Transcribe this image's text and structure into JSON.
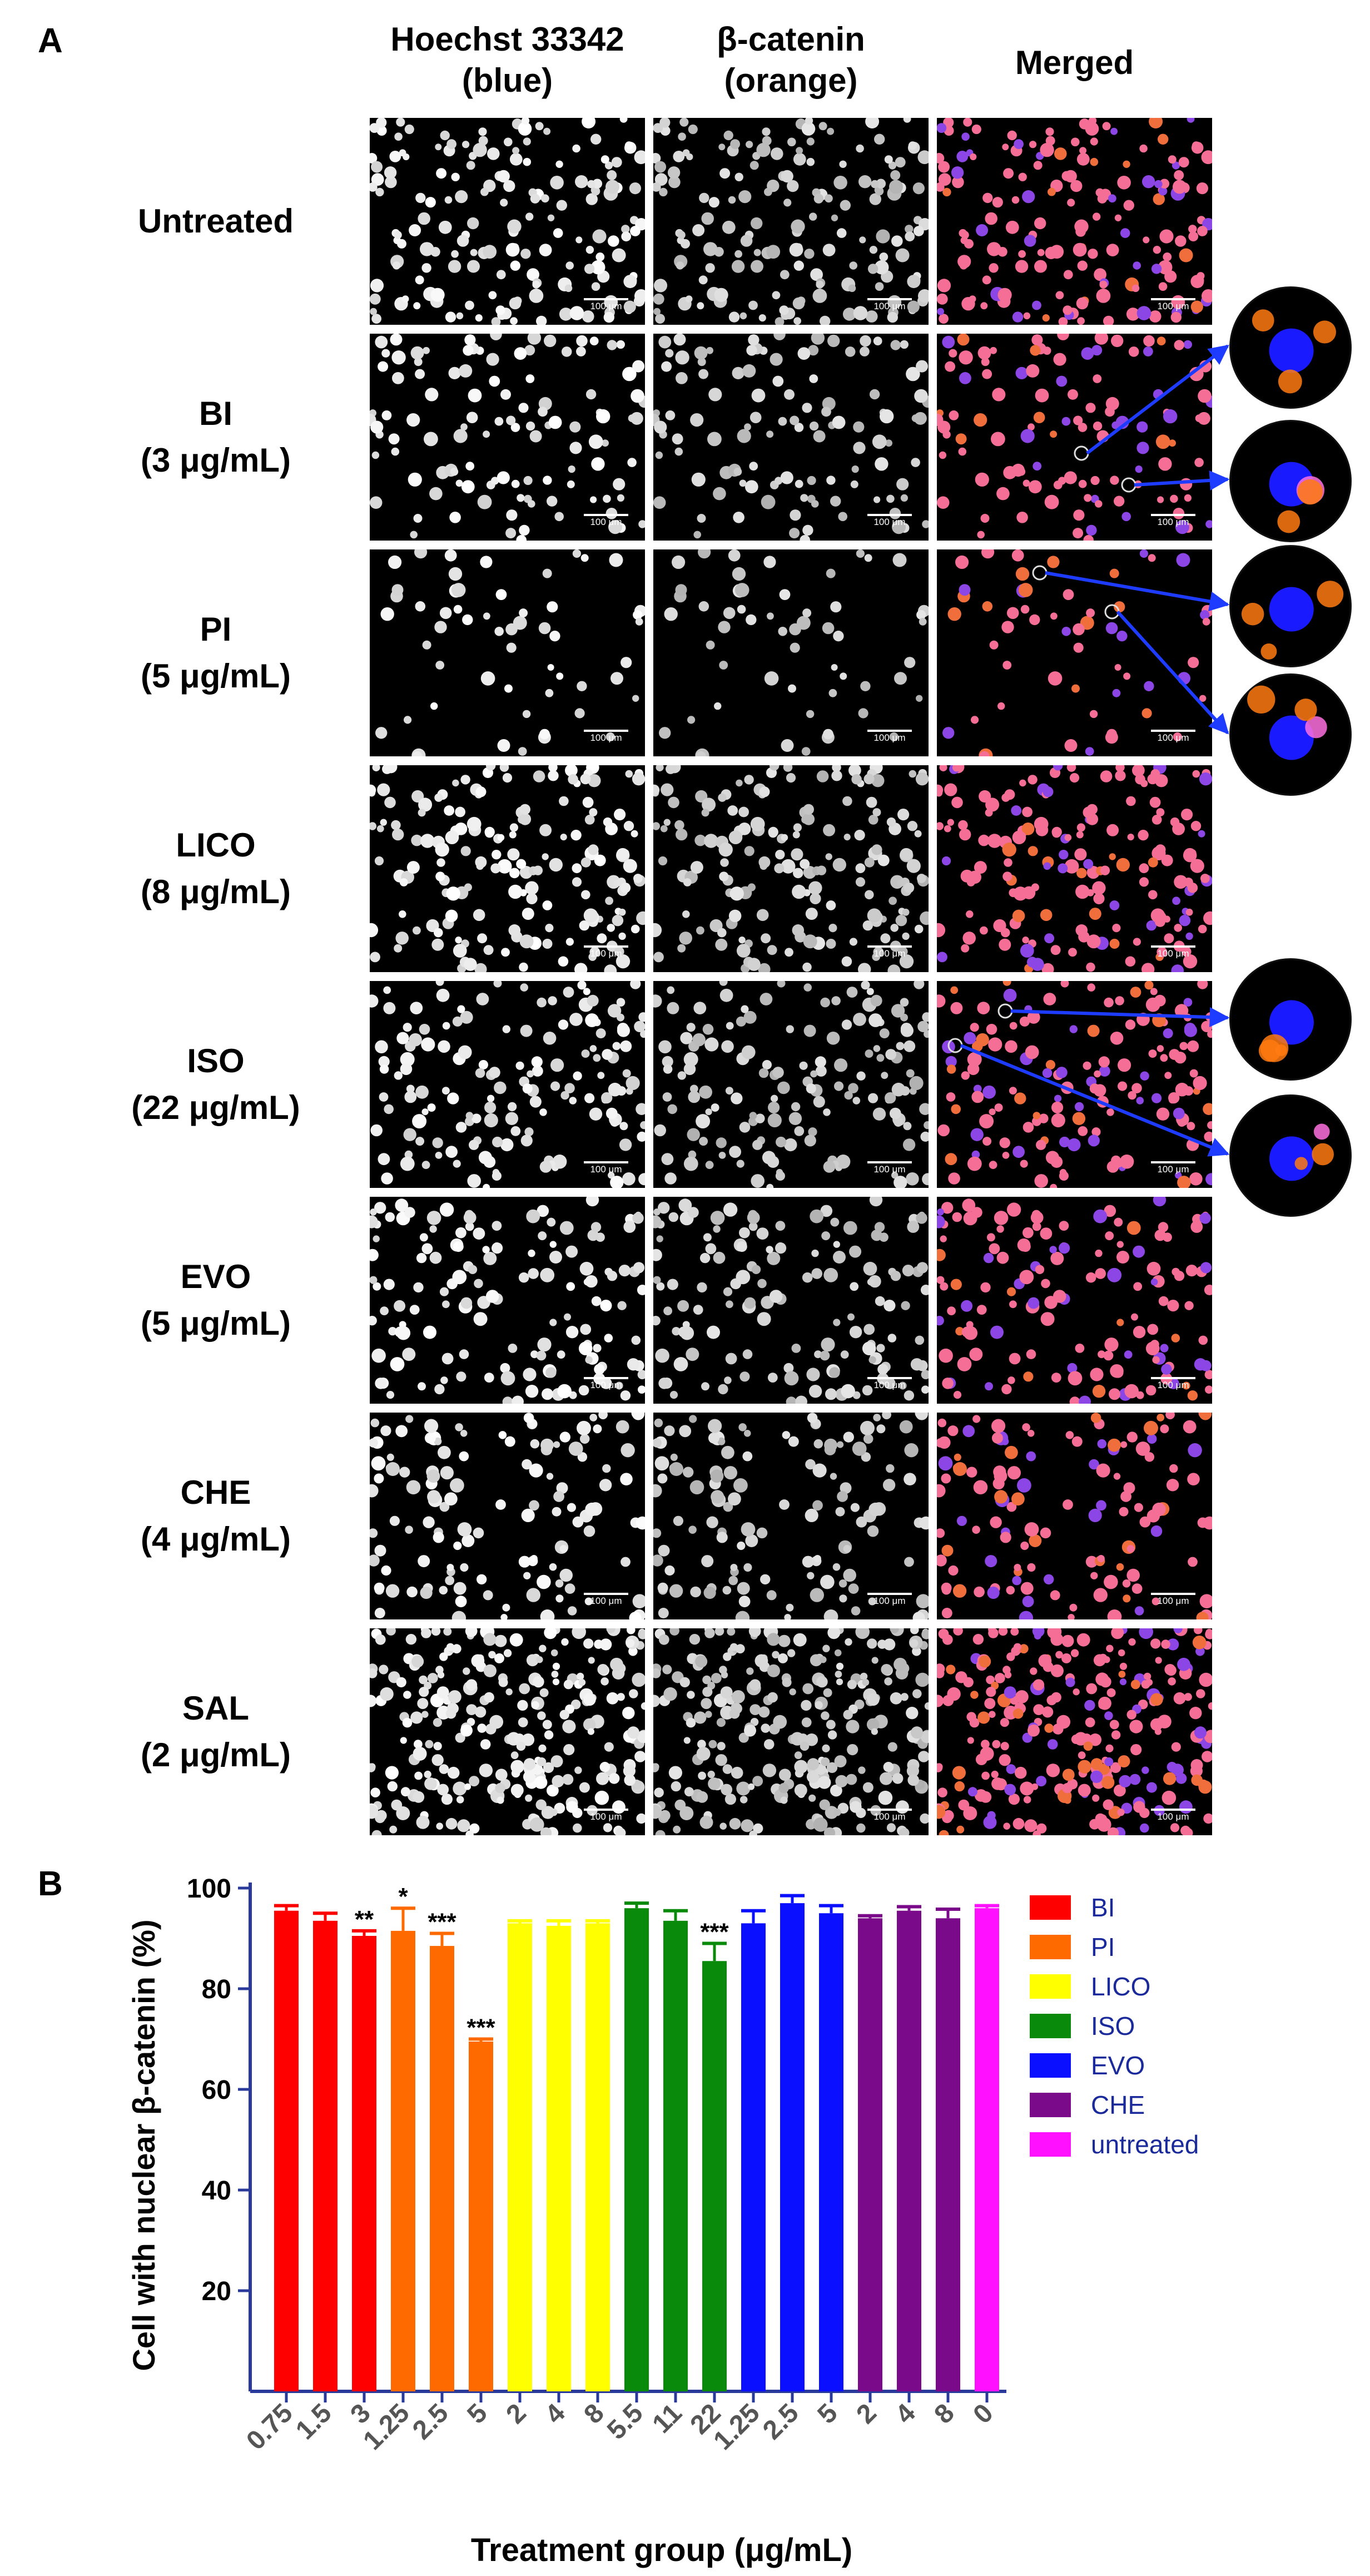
{
  "panel_a": {
    "letter": "A",
    "columns": [
      {
        "line1": "Hoechst 33342",
        "line2": "(blue)"
      },
      {
        "line1": "β-catenin",
        "line2": "(orange)"
      },
      {
        "line1": "Merged",
        "line2": ""
      }
    ],
    "rows": [
      {
        "line1": "Untreated",
        "line2": ""
      },
      {
        "line1": "BI",
        "line2": "(3 μg/mL)"
      },
      {
        "line1": "PI",
        "line2": "(5 μg/mL)"
      },
      {
        "line1": "LICO",
        "line2": "(8 μg/mL)"
      },
      {
        "line1": "ISO",
        "line2": "(22 μg/mL)"
      },
      {
        "line1": "EVO",
        "line2": "(5 μg/mL)"
      },
      {
        "line1": "CHE",
        "line2": "(4 μg/mL)"
      },
      {
        "line1": "SAL",
        "line2": "(2 μg/mL)"
      }
    ],
    "scale_bar_label": "100 μm"
  },
  "panel_b": {
    "letter": "B"
  },
  "chart_data": {
    "type": "bar",
    "xlabel": "Treatment group (μg/mL)",
    "ylabel": "Cell with nuclear β-catenin (%)",
    "ylim": [
      0,
      100
    ],
    "yticks": [
      20,
      40,
      60,
      80,
      100
    ],
    "categories": [
      "0.75",
      "1.5",
      "3",
      "1.25",
      "2.5",
      "5",
      "2",
      "4",
      "8",
      "5.5",
      "11",
      "22",
      "1.25",
      "2.5",
      "5",
      "2",
      "4",
      "8",
      "0"
    ],
    "values": [
      95.5,
      93.5,
      90.5,
      91.5,
      88.5,
      69.5,
      93,
      92.5,
      93,
      96,
      93.5,
      85.5,
      93,
      97,
      95,
      94,
      95.5,
      94,
      96
    ],
    "errors": [
      1.0,
      1.5,
      1.0,
      4.5,
      2.5,
      0.5,
      0.5,
      1.0,
      0.5,
      1.0,
      2.0,
      3.5,
      2.5,
      1.5,
      1.5,
      0.5,
      0.8,
      1.8,
      0.5
    ],
    "significance": [
      "",
      "",
      "**",
      "*",
      "***",
      "***",
      "",
      "",
      "",
      "",
      "",
      "***",
      "",
      "",
      "",
      "",
      "",
      "",
      ""
    ],
    "bar_series": [
      "BI",
      "BI",
      "BI",
      "PI",
      "PI",
      "PI",
      "LICO",
      "LICO",
      "LICO",
      "ISO",
      "ISO",
      "ISO",
      "EVO",
      "EVO",
      "EVO",
      "CHE",
      "CHE",
      "CHE",
      "untreated"
    ],
    "series": [
      {
        "name": "BI",
        "color": "#ff0000"
      },
      {
        "name": "PI",
        "color": "#ff6a00"
      },
      {
        "name": "LICO",
        "color": "#ffff00"
      },
      {
        "name": "ISO",
        "color": "#0a8a0a"
      },
      {
        "name": "EVO",
        "color": "#0a10ff"
      },
      {
        "name": "CHE",
        "color": "#7a0a8a"
      },
      {
        "name": "untreated",
        "color": "#ff10ff"
      }
    ],
    "axis_color": "#2a3a9a",
    "grid": false,
    "legend_position": "right"
  }
}
